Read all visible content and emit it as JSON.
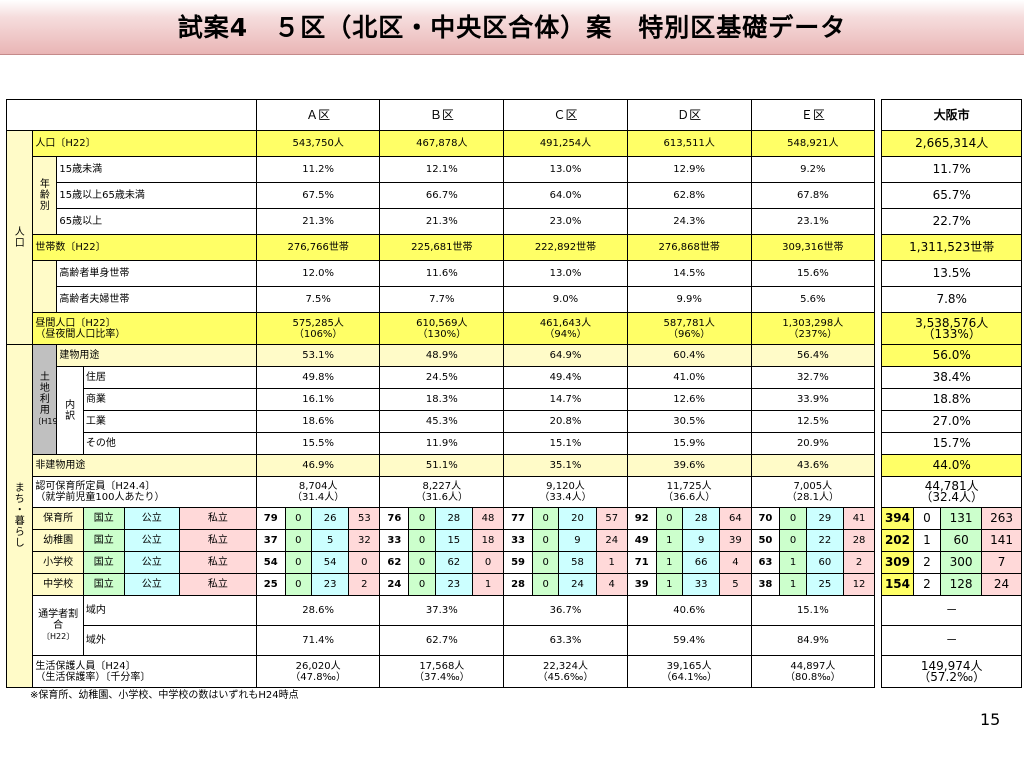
{
  "title": "試案4　５区（北区・中央区合体）案　特別区基礎データ",
  "headers": [
    "Ａ区",
    "Ｂ区",
    "Ｃ区",
    "Ｄ区",
    "Ｅ区",
    "大阪市"
  ],
  "sections": {
    "population": "人口",
    "town": "まち・暮らし",
    "age_group": "年齢別",
    "land_use": "土地利用",
    "land_use_year": "〔H19〕",
    "breakdown": "内訳",
    "enroll": "通学者割合",
    "enroll_year": "〔H22〕"
  },
  "rows": {
    "pop": {
      "label": "人口〔H22〕",
      "values": [
        "543,750人",
        "467,878人",
        "491,254人",
        "613,511人",
        "548,921人",
        "2,665,314人"
      ]
    },
    "age15": {
      "label": "15歳未満",
      "values": [
        "11.2%",
        "12.1%",
        "13.0%",
        "12.9%",
        "9.2%",
        "11.7%"
      ]
    },
    "age15_65": {
      "label": "15歳以上65歳未満",
      "values": [
        "67.5%",
        "66.7%",
        "64.0%",
        "62.8%",
        "67.8%",
        "65.7%"
      ]
    },
    "age65": {
      "label": "65歳以上",
      "values": [
        "21.3%",
        "21.3%",
        "23.0%",
        "24.3%",
        "23.1%",
        "22.7%"
      ]
    },
    "households": {
      "label": "世帯数〔H22〕",
      "values": [
        "276,766世帯",
        "225,681世帯",
        "222,892世帯",
        "276,868世帯",
        "309,316世帯",
        "1,311,523世帯"
      ]
    },
    "elderly_single": {
      "label": "高齢者単身世帯",
      "values": [
        "12.0%",
        "11.6%",
        "13.0%",
        "14.5%",
        "15.6%",
        "13.5%"
      ]
    },
    "elderly_couple": {
      "label": "高齢者夫婦世帯",
      "values": [
        "7.5%",
        "7.7%",
        "9.0%",
        "9.9%",
        "5.6%",
        "7.8%"
      ]
    },
    "daytime": {
      "label1": "昼間人口〔H22〕",
      "label2": "（昼夜間人口比率）",
      "values": [
        "575,285人",
        "610,569人",
        "461,643人",
        "587,781人",
        "1,303,298人",
        "3,538,576人"
      ],
      "ratios": [
        "（106%）",
        "（130%）",
        "（94%）",
        "（96%）",
        "（237%）",
        "（133%）"
      ]
    },
    "building": {
      "label": "建物用途",
      "values": [
        "53.1%",
        "48.9%",
        "64.9%",
        "60.4%",
        "56.4%",
        "56.0%"
      ]
    },
    "residence": {
      "label": "住居",
      "values": [
        "49.8%",
        "24.5%",
        "49.4%",
        "41.0%",
        "32.7%",
        "38.4%"
      ]
    },
    "commerce": {
      "label": "商業",
      "values": [
        "16.1%",
        "18.3%",
        "14.7%",
        "12.6%",
        "33.9%",
        "18.8%"
      ]
    },
    "industry": {
      "label": "工業",
      "values": [
        "18.6%",
        "45.3%",
        "20.8%",
        "30.5%",
        "12.5%",
        "27.0%"
      ]
    },
    "other": {
      "label": "その他",
      "values": [
        "15.5%",
        "11.9%",
        "15.1%",
        "15.9%",
        "20.9%",
        "15.7%"
      ]
    },
    "nonbuilding": {
      "label": "非建物用途",
      "values": [
        "46.9%",
        "51.1%",
        "35.1%",
        "39.6%",
        "43.6%",
        "44.0%"
      ]
    },
    "nursery_cap": {
      "label1": "認可保育所定員〔H24.4〕",
      "label2": "（就学前児童100人あたり）",
      "values": [
        "8,704人",
        "8,227人",
        "9,120人",
        "11,725人",
        "7,005人",
        "44,781人"
      ],
      "ratios": [
        "（31.4人）",
        "（31.6人）",
        "（33.4人）",
        "（36.6人）",
        "（28.1人）",
        "（32.4人）"
      ]
    },
    "enroll_in": {
      "label": "域内",
      "values": [
        "28.6%",
        "37.3%",
        "36.7%",
        "40.6%",
        "15.1%",
        "－"
      ]
    },
    "enroll_out": {
      "label": "域外",
      "values": [
        "71.4%",
        "62.7%",
        "63.3%",
        "59.4%",
        "84.9%",
        "－"
      ]
    },
    "welfare": {
      "label1": "生活保護人員〔H24〕",
      "label2": "（生活保護率）〔千分率〕",
      "values": [
        "26,020人",
        "17,568人",
        "22,324人",
        "39,165人",
        "44,897人",
        "149,974人"
      ],
      "ratios": [
        "（47.8‰）",
        "（37.4‰）",
        "（45.6‰）",
        "（64.1‰）",
        "（80.8‰）",
        "（57.2‰）"
      ]
    }
  },
  "types": {
    "national": "国立",
    "public": "公立",
    "private": "私立"
  },
  "schools": [
    {
      "label": "保育所",
      "data": [
        [
          79,
          0,
          26,
          53
        ],
        [
          76,
          0,
          28,
          48
        ],
        [
          77,
          0,
          20,
          57
        ],
        [
          92,
          0,
          28,
          64
        ],
        [
          70,
          0,
          29,
          41
        ],
        [
          394,
          0,
          131,
          263
        ]
      ]
    },
    {
      "label": "幼稚園",
      "data": [
        [
          37,
          0,
          5,
          32
        ],
        [
          33,
          0,
          15,
          18
        ],
        [
          33,
          0,
          9,
          24
        ],
        [
          49,
          1,
          9,
          39
        ],
        [
          50,
          0,
          22,
          28
        ],
        [
          202,
          1,
          60,
          141
        ]
      ]
    },
    {
      "label": "小学校",
      "data": [
        [
          54,
          0,
          54,
          0
        ],
        [
          62,
          0,
          62,
          0
        ],
        [
          59,
          0,
          58,
          1
        ],
        [
          71,
          1,
          66,
          4
        ],
        [
          63,
          1,
          60,
          2
        ],
        [
          309,
          2,
          300,
          7
        ]
      ]
    },
    {
      "label": "中学校",
      "data": [
        [
          25,
          0,
          23,
          2
        ],
        [
          24,
          0,
          23,
          1
        ],
        [
          28,
          0,
          24,
          4
        ],
        [
          39,
          1,
          33,
          5
        ],
        [
          38,
          1,
          25,
          12
        ],
        [
          154,
          2,
          128,
          24
        ]
      ]
    }
  ],
  "footnote": "※保育所、幼稚園、小学校、中学校の数はいずれもH24時点",
  "page_number": "15"
}
